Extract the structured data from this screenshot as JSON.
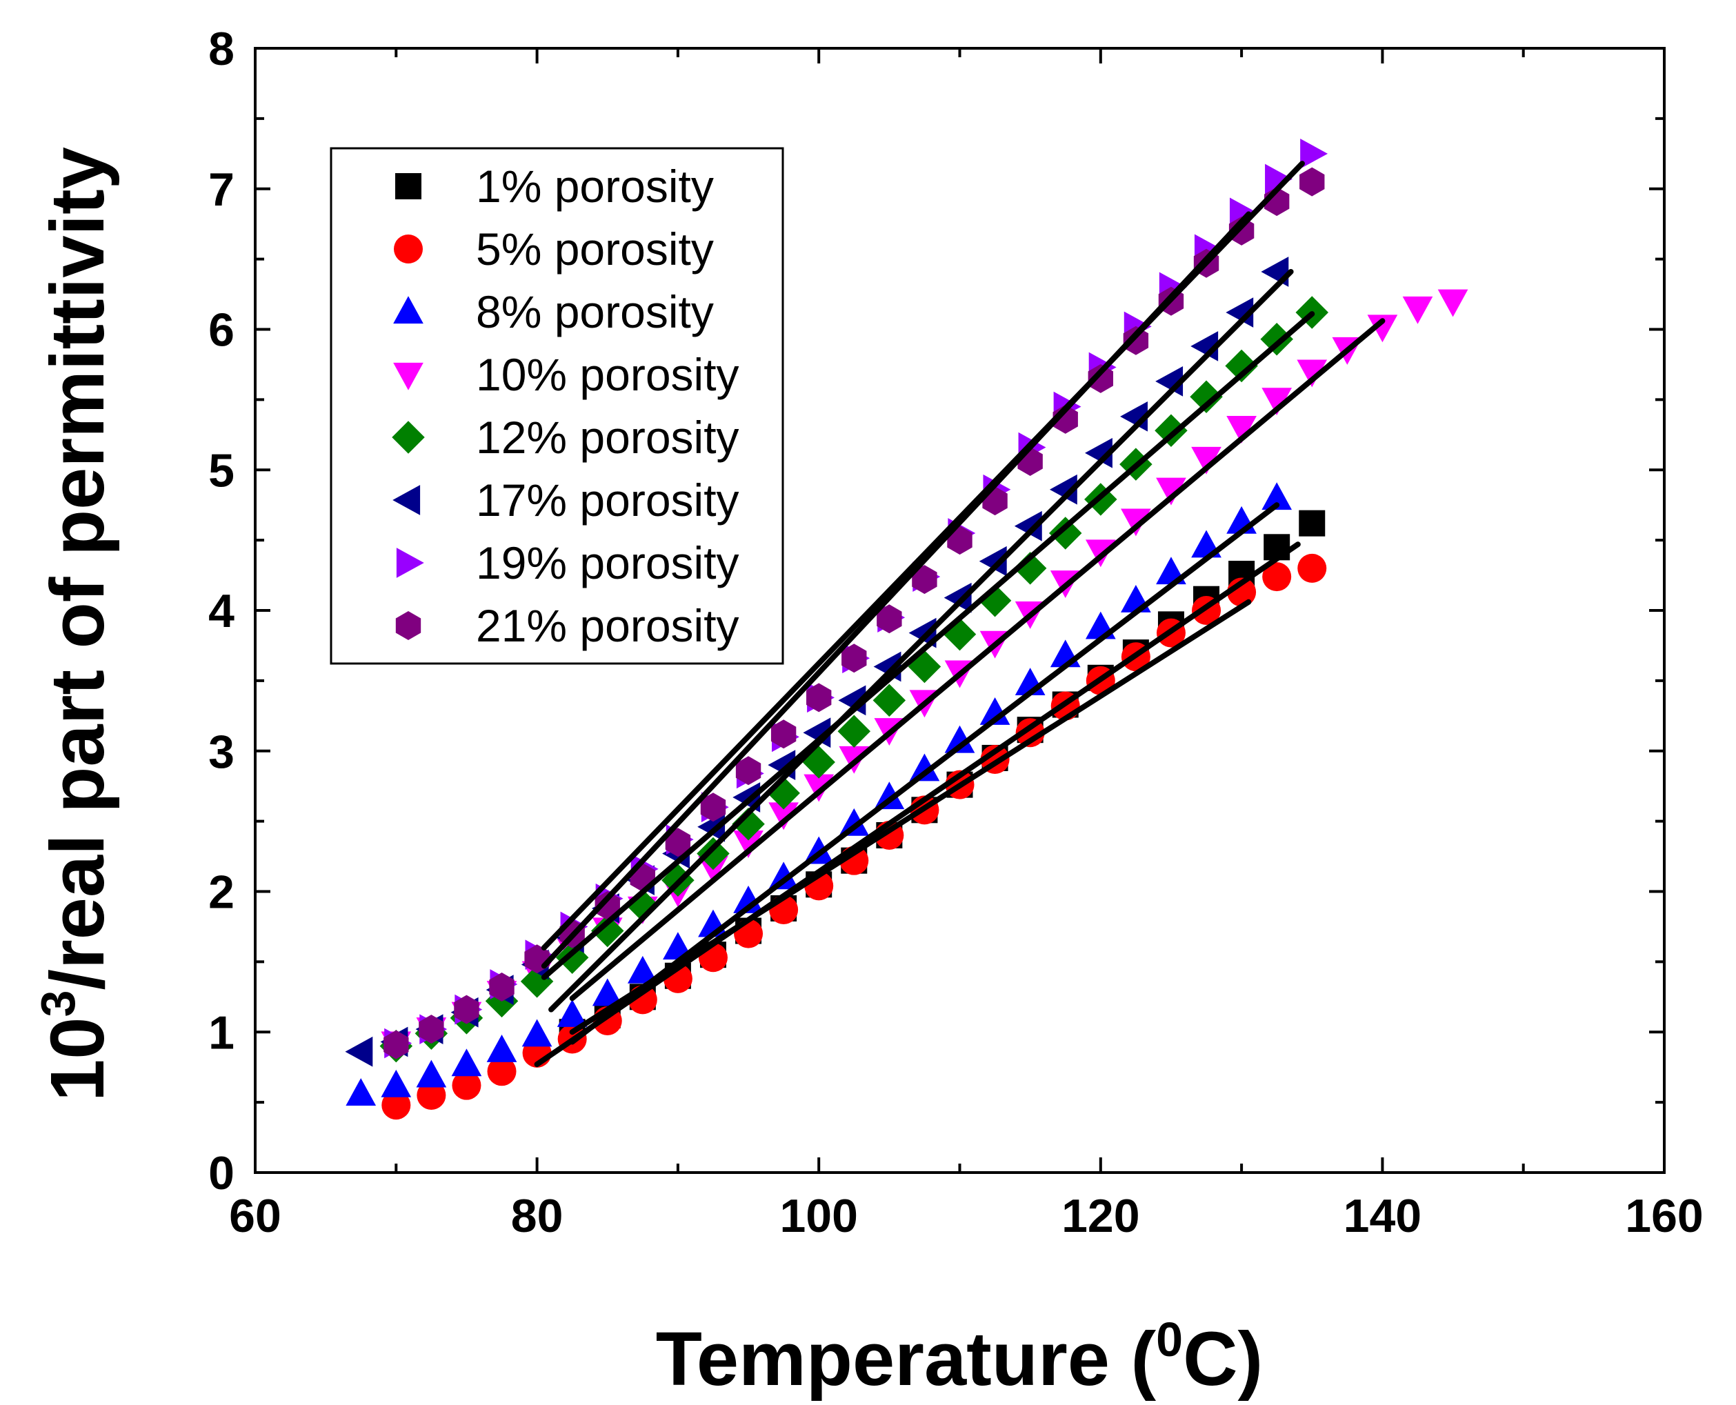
{
  "chart_data": {
    "type": "scatter",
    "title": "",
    "xlabel": "Temperature (",
    "xlabel_sup": "0",
    "xlabel_end": "C)",
    "ylabel_prefix": "10",
    "ylabel_sup": "3",
    "ylabel_rest": "/real part of permittivity",
    "xlim": [
      60,
      160
    ],
    "ylim": [
      0,
      8
    ],
    "x_ticks": [
      "60",
      "80",
      "100",
      "120",
      "140",
      "160"
    ],
    "y_ticks": [
      "0",
      "1",
      "2",
      "3",
      "4",
      "5",
      "6",
      "7",
      "8"
    ],
    "grid": false,
    "legend_position": "top-left",
    "series": [
      {
        "name": "1% porosity",
        "marker": "square",
        "color": "#000000",
        "x": [
          82.5,
          85,
          87.5,
          90,
          92.5,
          95,
          97.5,
          100,
          102.5,
          105,
          107.5,
          110,
          112.5,
          115,
          117.5,
          120,
          122.5,
          125,
          127.5,
          130,
          132.5,
          135
        ],
        "y": [
          1.0,
          1.12,
          1.25,
          1.4,
          1.55,
          1.72,
          1.88,
          2.05,
          2.22,
          2.4,
          2.58,
          2.76,
          2.95,
          3.15,
          3.33,
          3.52,
          3.7,
          3.9,
          4.08,
          4.26,
          4.45,
          4.62
        ]
      },
      {
        "name": "5% porosity",
        "marker": "circle",
        "color": "#ff0000",
        "x": [
          70,
          72.5,
          75,
          77.5,
          80,
          82.5,
          85,
          87.5,
          90,
          92.5,
          95,
          97.5,
          100,
          102.5,
          105,
          107.5,
          110,
          112.5,
          115,
          117.5,
          120,
          122.5,
          125,
          127.5,
          130,
          132.5,
          135
        ],
        "y": [
          0.48,
          0.55,
          0.62,
          0.72,
          0.85,
          0.95,
          1.08,
          1.23,
          1.38,
          1.53,
          1.7,
          1.87,
          2.04,
          2.22,
          2.4,
          2.58,
          2.76,
          2.94,
          3.13,
          3.32,
          3.5,
          3.67,
          3.84,
          4.0,
          4.13,
          4.24,
          4.3
        ]
      },
      {
        "name": "8% porosity",
        "marker": "triangle-up",
        "color": "#0000ff",
        "x": [
          67.5,
          70,
          72.5,
          75,
          77.5,
          80,
          82.5,
          85,
          87.5,
          90,
          92.5,
          95,
          97.5,
          100,
          102.5,
          105,
          107.5,
          110,
          112.5,
          115,
          117.5,
          120,
          122.5,
          125,
          127.5,
          130,
          132.5
        ],
        "y": [
          0.56,
          0.62,
          0.69,
          0.77,
          0.87,
          0.98,
          1.12,
          1.27,
          1.43,
          1.6,
          1.76,
          1.93,
          2.1,
          2.28,
          2.48,
          2.67,
          2.87,
          3.07,
          3.27,
          3.48,
          3.68,
          3.88,
          4.07,
          4.27,
          4.46,
          4.63,
          4.8
        ]
      },
      {
        "name": "10% porosity",
        "marker": "triangle-down",
        "color": "#ff00ff",
        "x": [
          70,
          72.5,
          75,
          77.5,
          80,
          82.5,
          85,
          87.5,
          90,
          92.5,
          95,
          97.5,
          100,
          102.5,
          105,
          107.5,
          110,
          112.5,
          115,
          117.5,
          120,
          122.5,
          125,
          127.5,
          130,
          132.5,
          135,
          137.5,
          140,
          142.5,
          145
        ],
        "y": [
          0.92,
          1.02,
          1.13,
          1.28,
          1.42,
          1.58,
          1.73,
          1.88,
          2.0,
          2.17,
          2.35,
          2.55,
          2.75,
          2.95,
          3.15,
          3.35,
          3.56,
          3.77,
          3.98,
          4.2,
          4.42,
          4.64,
          4.86,
          5.08,
          5.3,
          5.5,
          5.7,
          5.86,
          6.02,
          6.15,
          6.2
        ]
      },
      {
        "name": "12% porosity",
        "marker": "diamond",
        "color": "#008000",
        "x": [
          70,
          72.5,
          75,
          77.5,
          80,
          82.5,
          85,
          87.5,
          90,
          92.5,
          95,
          97.5,
          100,
          102.5,
          105,
          107.5,
          110,
          112.5,
          115,
          117.5,
          120,
          122.5,
          125,
          127.5,
          130,
          132.5,
          135
        ],
        "y": [
          0.9,
          0.99,
          1.1,
          1.22,
          1.36,
          1.53,
          1.72,
          1.9,
          2.08,
          2.27,
          2.48,
          2.7,
          2.92,
          3.14,
          3.36,
          3.6,
          3.83,
          4.07,
          4.3,
          4.55,
          4.79,
          5.04,
          5.28,
          5.52,
          5.74,
          5.93,
          6.12
        ]
      },
      {
        "name": "17% porosity",
        "marker": "triangle-left",
        "color": "#00008b",
        "x": [
          67.5,
          70,
          72.5,
          75,
          77.5,
          80,
          82.5,
          85,
          87.5,
          90,
          92.5,
          95,
          97.5,
          100,
          102.5,
          105,
          107.5,
          110,
          112.5,
          115,
          117.5,
          120,
          122.5,
          125,
          127.5,
          130,
          132.5
        ],
        "y": [
          0.86,
          0.93,
          1.02,
          1.14,
          1.3,
          1.48,
          1.67,
          1.88,
          2.08,
          2.27,
          2.46,
          2.67,
          2.9,
          3.13,
          3.36,
          3.6,
          3.84,
          4.09,
          4.35,
          4.6,
          4.86,
          5.12,
          5.38,
          5.63,
          5.88,
          6.12,
          6.41
        ]
      },
      {
        "name": "19% porosity",
        "marker": "triangle-right",
        "color": "#9900ff",
        "x": [
          70,
          72.5,
          75,
          77.5,
          80,
          82.5,
          85,
          87.5,
          90,
          92.5,
          95,
          97.5,
          100,
          102.5,
          105,
          107.5,
          110,
          112.5,
          115,
          117.5,
          120,
          122.5,
          125,
          127.5,
          130,
          132.5,
          135
        ],
        "y": [
          0.92,
          1.02,
          1.16,
          1.34,
          1.55,
          1.75,
          1.95,
          2.16,
          2.37,
          2.6,
          2.84,
          3.1,
          3.38,
          3.66,
          3.95,
          4.24,
          4.55,
          4.86,
          5.16,
          5.45,
          5.73,
          6.02,
          6.3,
          6.57,
          6.83,
          7.07,
          7.25
        ]
      },
      {
        "name": "21% porosity",
        "marker": "hexagon",
        "color": "#800080",
        "x": [
          70,
          72.5,
          75,
          77.5,
          80,
          82.5,
          85,
          87.5,
          90,
          92.5,
          95,
          97.5,
          100,
          102.5,
          105,
          107.5,
          110,
          112.5,
          115,
          117.5,
          120,
          122.5,
          125,
          127.5,
          130,
          132.5,
          135
        ],
        "y": [
          0.91,
          1.02,
          1.16,
          1.32,
          1.52,
          1.7,
          1.9,
          2.1,
          2.35,
          2.6,
          2.86,
          3.12,
          3.38,
          3.66,
          3.94,
          4.22,
          4.5,
          4.78,
          5.06,
          5.36,
          5.65,
          5.92,
          6.2,
          6.47,
          6.7,
          6.91,
          7.05
        ]
      }
    ],
    "fit_lines": [
      {
        "name": "fit-1% porosity",
        "x": [
          82.5,
          130.5
        ],
        "y": [
          1.0,
          4.06
        ]
      },
      {
        "name": "fit-5% porosity",
        "x": [
          80,
          134
        ],
        "y": [
          0.77,
          4.47
        ]
      },
      {
        "name": "fit-8% porosity",
        "x": [
          82.5,
          132.5
        ],
        "y": [
          0.93,
          4.75
        ]
      },
      {
        "name": "fit-10% porosity",
        "x": [
          82.5,
          140
        ],
        "y": [
          1.24,
          6.06
        ]
      },
      {
        "name": "fit-12% porosity",
        "x": [
          80.5,
          135
        ],
        "y": [
          1.39,
          6.11
        ]
      },
      {
        "name": "fit-17% porosity",
        "x": [
          81,
          133.5
        ],
        "y": [
          1.16,
          6.41
        ]
      },
      {
        "name": "fit-19% porosity",
        "x": [
          80.5,
          134.3
        ],
        "y": [
          1.6,
          7.18
        ]
      },
      {
        "name": "fit-21% porosity",
        "x": [
          80.5,
          130.5
        ],
        "y": [
          1.47,
          6.82
        ]
      }
    ]
  }
}
